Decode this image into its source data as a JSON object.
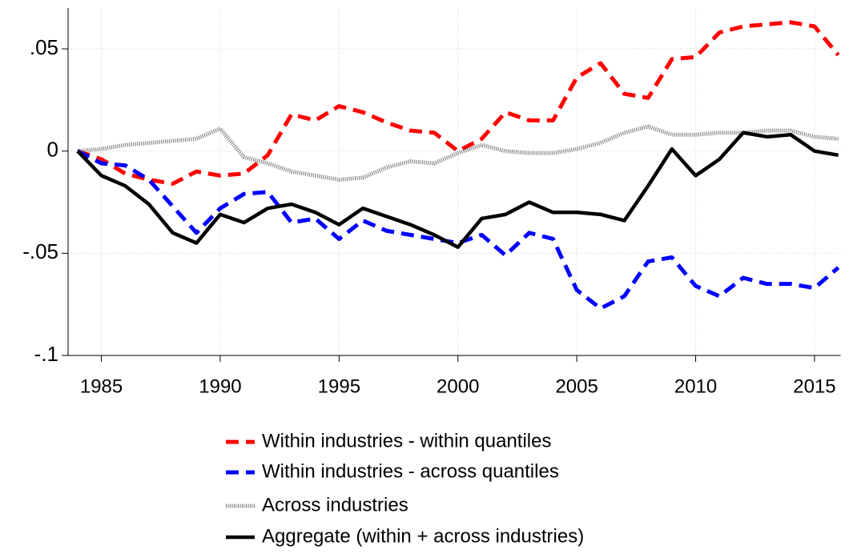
{
  "chart_data": {
    "type": "line",
    "x": [
      1984,
      1985,
      1986,
      1987,
      1988,
      1989,
      1990,
      1991,
      1992,
      1993,
      1994,
      1995,
      1996,
      1997,
      1998,
      1999,
      2000,
      2001,
      2002,
      2003,
      2004,
      2005,
      2006,
      2007,
      2008,
      2009,
      2010,
      2011,
      2012,
      2013,
      2014,
      2015,
      2016
    ],
    "xlim": [
      1983.6,
      2016.1
    ],
    "xticks": [
      1985,
      1990,
      1995,
      2000,
      2005,
      2010,
      2015
    ],
    "ylim": [
      -0.1,
      0.07
    ],
    "yticks": [
      {
        "value": 0.05,
        "label": ".05"
      },
      0,
      {
        "value": -0.05,
        "label": "-.05"
      },
      {
        "value": -0.1,
        "label": "-.1"
      }
    ],
    "grid": true,
    "legend": "bottom",
    "series": [
      {
        "name": "Within industries - within quantiles",
        "color": "#ff0000",
        "style": "dashed",
        "values": [
          0,
          -0.004,
          -0.011,
          -0.014,
          -0.016,
          -0.01,
          -0.012,
          -0.011,
          -0.002,
          0.018,
          0.015,
          0.022,
          0.019,
          0.014,
          0.01,
          0.009,
          0.0,
          0.006,
          0.019,
          0.015,
          0.015,
          0.036,
          0.043,
          0.028,
          0.026,
          0.045,
          0.046,
          0.058,
          0.061,
          0.062,
          0.063,
          0.061,
          0.047
        ]
      },
      {
        "name": "Within industries - across quantiles",
        "color": "#0000ff",
        "style": "dashed",
        "values": [
          0,
          -0.006,
          -0.007,
          -0.014,
          -0.027,
          -0.04,
          -0.028,
          -0.021,
          -0.02,
          -0.035,
          -0.033,
          -0.043,
          -0.034,
          -0.039,
          -0.041,
          -0.043,
          -0.045,
          -0.041,
          -0.051,
          -0.04,
          -0.043,
          -0.068,
          -0.077,
          -0.071,
          -0.054,
          -0.052,
          -0.066,
          -0.071,
          -0.062,
          -0.065,
          -0.065,
          -0.067,
          -0.057
        ]
      },
      {
        "name": "Across industries",
        "color": "#555555",
        "style": "dotted",
        "values": [
          0,
          0.001,
          0.003,
          0.004,
          0.005,
          0.006,
          0.011,
          -0.003,
          -0.006,
          -0.01,
          -0.012,
          -0.014,
          -0.013,
          -0.008,
          -0.005,
          -0.006,
          -0.001,
          0.003,
          0.0,
          -0.001,
          -0.001,
          0.001,
          0.004,
          0.009,
          0.012,
          0.008,
          0.008,
          0.009,
          0.009,
          0.01,
          0.01,
          0.007,
          0.006
        ]
      },
      {
        "name": "Aggregate (within + across industries)",
        "color": "#000000",
        "style": "solid",
        "values": [
          0,
          -0.012,
          -0.017,
          -0.026,
          -0.04,
          -0.045,
          -0.031,
          -0.035,
          -0.028,
          -0.026,
          -0.03,
          -0.036,
          -0.028,
          -0.032,
          -0.036,
          -0.041,
          -0.047,
          -0.033,
          -0.031,
          -0.025,
          -0.03,
          -0.03,
          -0.031,
          -0.034,
          -0.017,
          0.001,
          -0.012,
          -0.004,
          0.009,
          0.007,
          0.008,
          0.0,
          -0.002
        ]
      }
    ]
  }
}
